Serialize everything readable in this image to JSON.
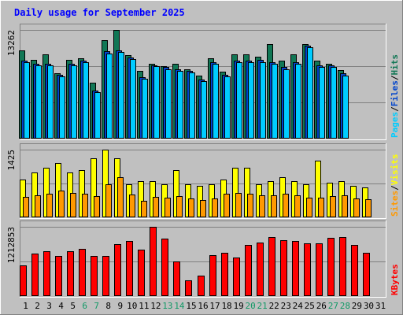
{
  "chart_data": {
    "type": "bar",
    "title": "Daily usage for September 2025",
    "days": [
      "1",
      "2",
      "3",
      "4",
      "5",
      "6",
      "7",
      "8",
      "9",
      "10",
      "11",
      "12",
      "13",
      "14",
      "15",
      "16",
      "17",
      "18",
      "19",
      "20",
      "21",
      "22",
      "23",
      "24",
      "25",
      "26",
      "27",
      "28",
      "29",
      "30",
      "31"
    ],
    "weekend_days": [
      "6",
      "7",
      "13",
      "14",
      "20",
      "21",
      "27",
      "28"
    ],
    "panels": [
      {
        "ymax_label": "13262",
        "ymax": 13262,
        "legend": [
          "Pages",
          "Files",
          "Hits"
        ],
        "series": [
          {
            "name": "Hits",
            "color": "#117755",
            "values": [
              10800,
              9600,
              10300,
              8000,
              9600,
              9800,
              6800,
              12000,
              13262,
              10200,
              8300,
              9100,
              8800,
              9100,
              8500,
              7700,
              9800,
              8200,
              10300,
              10300,
              10000,
              11500,
              9500,
              10300,
              11500,
              9500,
              9100,
              8400,
              0,
              0,
              0
            ]
          },
          {
            "name": "Files",
            "color": "#0044cc",
            "values": [
              9500,
              9100,
              9100,
              7800,
              9100,
              9500,
              5900,
              10700,
              10800,
              9900,
              7500,
              8900,
              8700,
              8500,
              8300,
              7200,
              9300,
              7800,
              9500,
              9500,
              9600,
              9300,
              8700,
              9300,
              11300,
              8900,
              8900,
              8000,
              0,
              0,
              0
            ]
          },
          {
            "name": "Pages",
            "color": "#00ccff",
            "values": [
              9300,
              8900,
              8900,
              7600,
              8900,
              9300,
              5700,
              10400,
              10600,
              9700,
              7300,
              8800,
              8500,
              8300,
              8100,
              7000,
              9100,
              7600,
              9300,
              9300,
              9300,
              9100,
              8500,
              9100,
              11100,
              8700,
              8700,
              7700,
              0,
              0,
              0
            ]
          }
        ]
      },
      {
        "ymax_label": "1425",
        "ymax": 1425,
        "legend": [
          "Sites",
          "Visits"
        ],
        "series": [
          {
            "name": "Visits",
            "color": "#ffff00",
            "values": [
              800,
              950,
              1050,
              1150,
              950,
              1000,
              1250,
              1425,
              1250,
              700,
              770,
              770,
              700,
              1000,
              700,
              670,
              700,
              800,
              1050,
              1050,
              700,
              770,
              850,
              770,
              700,
              1200,
              730,
              770,
              670,
              630,
              0
            ]
          },
          {
            "name": "Sites",
            "color": "#ff9900",
            "values": [
              430,
              470,
              500,
              560,
              520,
              500,
              450,
              700,
              850,
              480,
              350,
              430,
              420,
              450,
              400,
              370,
              400,
              500,
              520,
              500,
              470,
              470,
              500,
              470,
              420,
              420,
              450,
              470,
              400,
              380,
              0
            ]
          }
        ]
      },
      {
        "ymax_label": "1212853",
        "ymax": 1212853,
        "legend": [
          "KBytes"
        ],
        "series": [
          {
            "name": "KBytes",
            "color": "#ff0000",
            "values": [
              540000,
              750000,
              790000,
              700000,
              780000,
              830000,
              700000,
              700000,
              910000,
              970000,
              820000,
              1212853,
              1000000,
              600000,
              270000,
              360000,
              720000,
              760000,
              680000,
              900000,
              940000,
              1040000,
              980000,
              970000,
              930000,
              930000,
              1020000,
              1040000,
              900000,
              760000,
              0
            ]
          }
        ]
      }
    ]
  },
  "colors": {
    "background": "#c0c0c0",
    "title": "#0000ff",
    "weekday_label": "#000000",
    "weekend_label": "#119966",
    "legend_separator": "#000000",
    "kbytes": "#ff0000"
  }
}
